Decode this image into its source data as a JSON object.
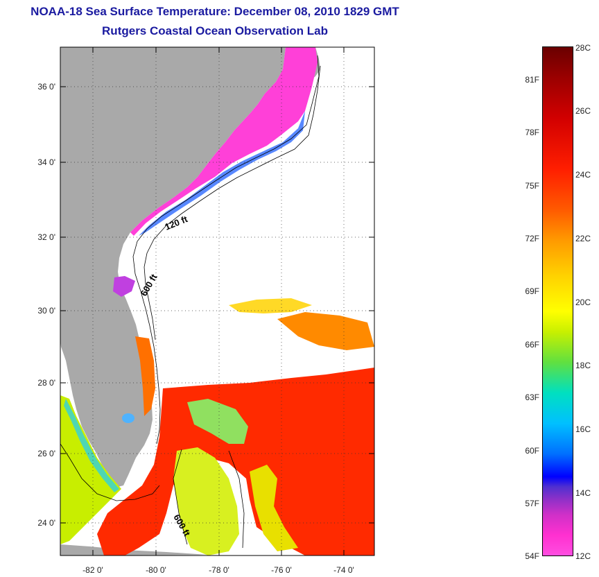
{
  "title": {
    "line1": "NOAA-18 Sea Surface Temperature:  December 08, 2010 1829 GMT",
    "line2": "Rutgers Coastal Ocean Observation Lab"
  },
  "map": {
    "lat_ticks": [
      "36 0'",
      "34 0'",
      "32 0'",
      "30 0'",
      "28 0'",
      "26 0'",
      "24 0'"
    ],
    "lon_ticks": [
      "-82 0'",
      "-80 0'",
      "-78 0'",
      "-76 0'",
      "-74 0'"
    ],
    "contour_labels": [
      "120 ft",
      "600 ft",
      "600 ft"
    ],
    "land_color": "#a9a9a9",
    "ocean_no_data_color": "#ffffff"
  },
  "colorbar": {
    "fahrenheit": [
      "81F",
      "78F",
      "75F",
      "72F",
      "69F",
      "66F",
      "63F",
      "60F",
      "57F",
      "54F"
    ],
    "celsius": [
      "28C",
      "26C",
      "24C",
      "22C",
      "20C",
      "18C",
      "16C",
      "14C",
      "12C"
    ],
    "range_c": [
      12,
      28
    ]
  }
}
